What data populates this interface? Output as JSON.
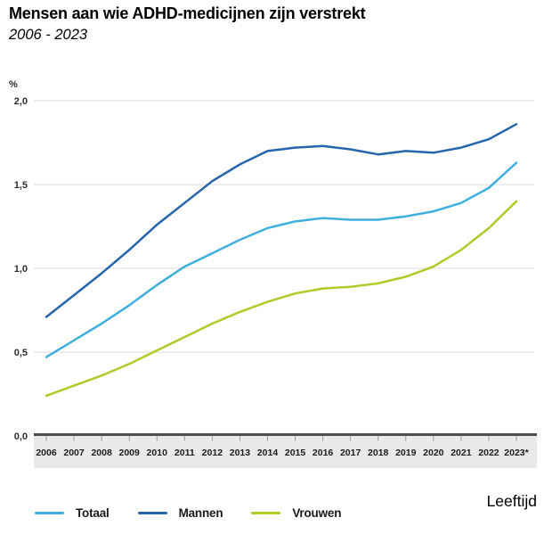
{
  "header": {
    "title": "Mensen aan wie ADHD-medicijnen zijn verstrekt",
    "subtitle": "2006 - 2023"
  },
  "footer": {
    "axis_tab_label": "Leeftijd"
  },
  "chart_data": {
    "type": "line",
    "title": "Mensen aan wie ADHD-medicijnen zijn verstrekt",
    "subtitle": "2006 - 2023",
    "unit_label": "%",
    "xlabel": "",
    "ylabel": "%",
    "categories": [
      "2006",
      "2007",
      "2008",
      "2009",
      "2010",
      "2011",
      "2012",
      "2013",
      "2014",
      "2015",
      "2016",
      "2017",
      "2018",
      "2019",
      "2020",
      "2021",
      "2022",
      "2023*"
    ],
    "series": [
      {
        "name": "Totaal",
        "color": "#3fafdf",
        "values": [
          0.47,
          0.57,
          0.67,
          0.78,
          0.9,
          1.01,
          1.09,
          1.17,
          1.24,
          1.28,
          1.3,
          1.29,
          1.29,
          1.31,
          1.34,
          1.39,
          1.48,
          1.63
        ]
      },
      {
        "name": "Mannen",
        "color": "#2565ae",
        "values": [
          0.71,
          0.84,
          0.97,
          1.11,
          1.26,
          1.39,
          1.52,
          1.62,
          1.7,
          1.72,
          1.73,
          1.71,
          1.68,
          1.7,
          1.69,
          1.72,
          1.77,
          1.86
        ]
      },
      {
        "name": "Vrouwen",
        "color": "#b0ca28",
        "values": [
          0.24,
          0.3,
          0.36,
          0.43,
          0.51,
          0.59,
          0.67,
          0.74,
          0.8,
          0.85,
          0.88,
          0.89,
          0.91,
          0.95,
          1.01,
          1.11,
          1.24,
          1.4
        ]
      }
    ],
    "ylim": [
      0.0,
      2.0
    ],
    "yticks": [
      0,
      0.5,
      1.0,
      1.5,
      2.0
    ],
    "ytick_labels": [
      "0,0",
      "0,5",
      "1,0",
      "1,5",
      "2,0"
    ],
    "grid": true,
    "legend_position": "bottom"
  }
}
